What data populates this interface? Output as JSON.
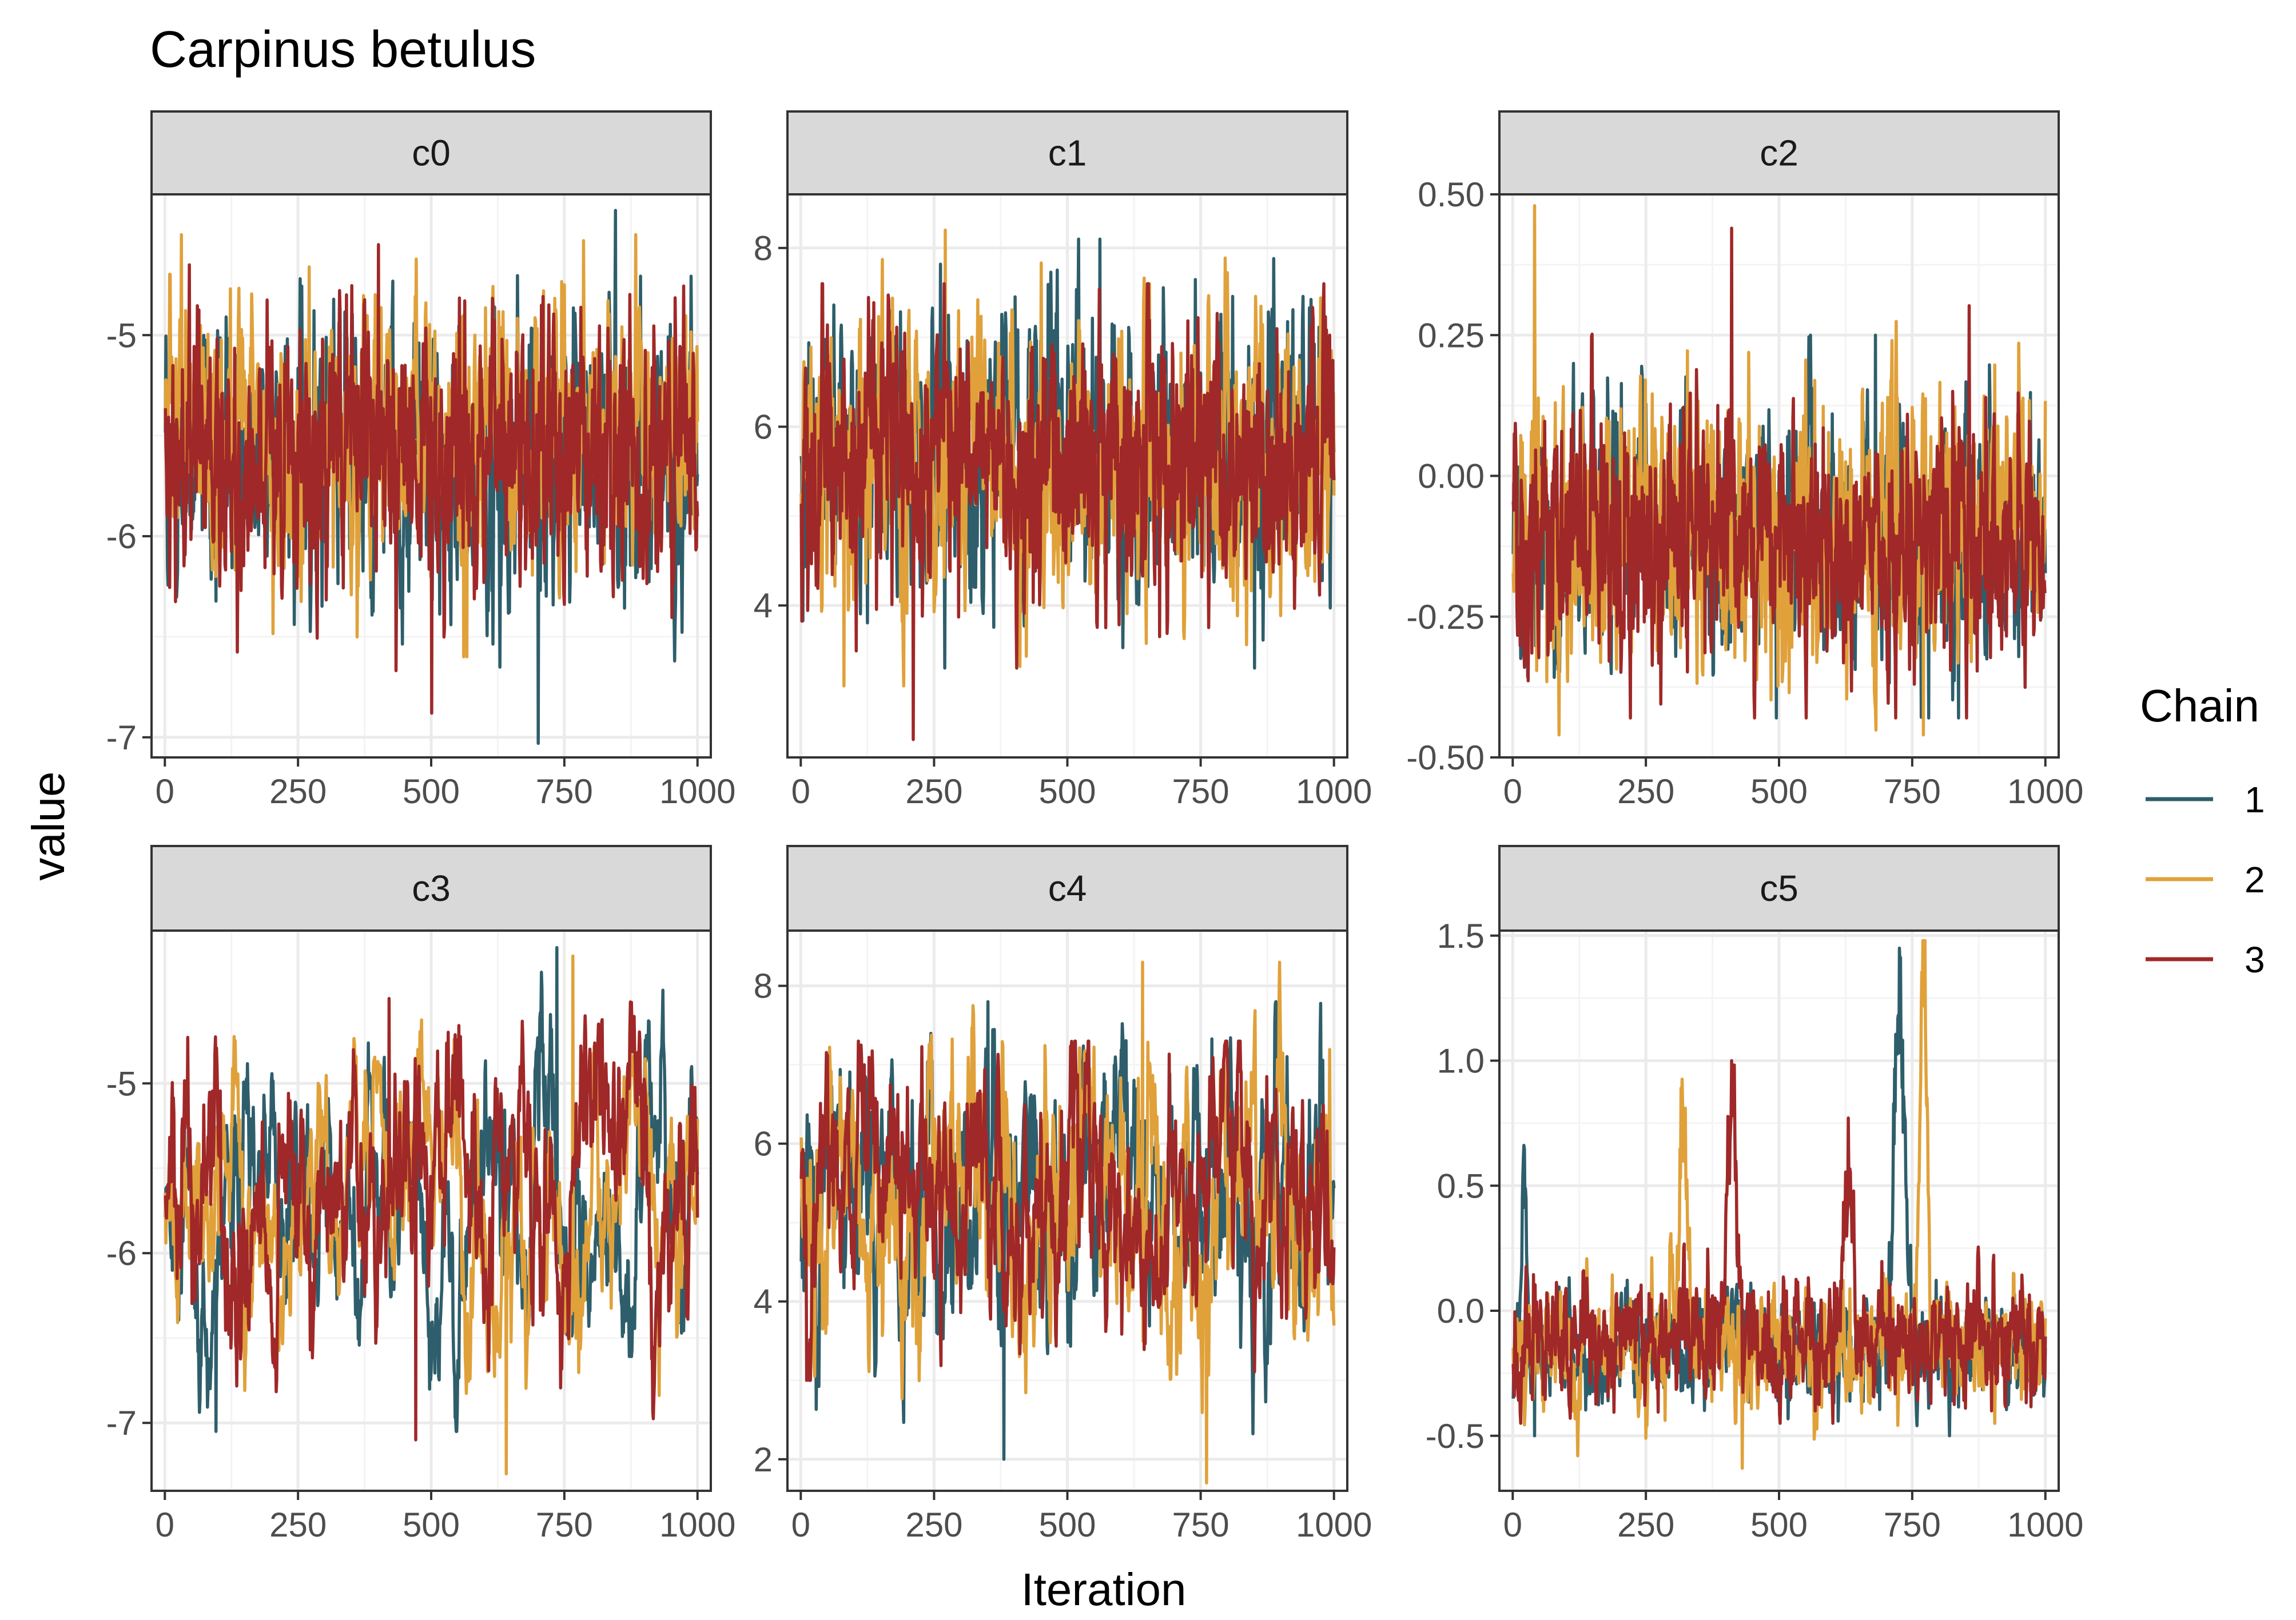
{
  "title": "Carpinus betulus",
  "chart_data": {
    "type": "line",
    "title": "Carpinus betulus",
    "xlabel": "Iteration",
    "ylabel": "value",
    "legend": {
      "title": "Chain",
      "placement": "right",
      "entries": [
        {
          "label": "1",
          "color": "#2e5e6b"
        },
        {
          "label": "2",
          "color": "#e0a13a"
        },
        {
          "label": "3",
          "color": "#a02828"
        }
      ]
    },
    "x_range": [
      1,
      1000
    ],
    "x_ticks": [
      0,
      250,
      500,
      750,
      1000
    ],
    "facets": [
      {
        "name": "c0",
        "ylim": [
          -7.1,
          -4.3
        ],
        "y_ticks": [
          -7,
          -6,
          -5
        ],
        "y_tick_labels": [
          "-7",
          "-6",
          "-5"
        ],
        "seed": 11,
        "chains": [
          {
            "mean": -5.6,
            "sd": 0.33,
            "ar": 0.55,
            "min": -7.03,
            "max": -4.38,
            "ext_min_at": 700,
            "ext_max_at": 845
          },
          {
            "mean": -5.5,
            "sd": 0.32,
            "ar": 0.55,
            "min": -6.6,
            "max": -4.5,
            "ext_min_at": 560,
            "ext_max_at": 30
          },
          {
            "mean": -5.6,
            "sd": 0.33,
            "ar": 0.55,
            "min": -6.88,
            "max": -4.55,
            "ext_min_at": 500,
            "ext_max_at": 400
          }
        ]
      },
      {
        "name": "c1",
        "ylim": [
          2.3,
          8.6
        ],
        "y_ticks": [
          4,
          6,
          8
        ],
        "y_tick_labels": [
          "4",
          "6",
          "8"
        ],
        "seed": 23,
        "chains": [
          {
            "mean": 5.7,
            "sd": 0.75,
            "ar": 0.5,
            "min": 3.3,
            "max": 8.1,
            "ext_min_at": 850,
            "ext_max_at": 560
          },
          {
            "mean": 5.6,
            "sd": 0.75,
            "ar": 0.5,
            "min": 3.1,
            "max": 8.2,
            "ext_min_at": 80,
            "ext_max_at": 270
          },
          {
            "mean": 5.6,
            "sd": 0.75,
            "ar": 0.5,
            "min": 2.5,
            "max": 7.6,
            "ext_min_at": 210,
            "ext_max_at": 980
          }
        ]
      },
      {
        "name": "c2",
        "ylim": [
          -0.5,
          0.5
        ],
        "y_ticks": [
          -0.5,
          -0.25,
          0,
          0.25,
          0.5
        ],
        "y_tick_labels": [
          "-0.50",
          "-0.25",
          "0.00",
          "0.25",
          "0.50"
        ],
        "seed": 37,
        "chains": [
          {
            "mean": -0.12,
            "sd": 0.11,
            "ar": 0.5,
            "min": -0.43,
            "max": 0.25,
            "ext_min_at": 780,
            "ext_max_at": 680
          },
          {
            "mean": -0.1,
            "sd": 0.12,
            "ar": 0.5,
            "min": -0.46,
            "max": 0.48,
            "ext_min_at": 770,
            "ext_max_at": 40
          },
          {
            "mean": -0.12,
            "sd": 0.11,
            "ar": 0.5,
            "min": -0.43,
            "max": 0.44,
            "ext_min_at": 220,
            "ext_max_at": 410
          }
        ]
      },
      {
        "name": "c3",
        "ylim": [
          -7.4,
          -4.1
        ],
        "y_ticks": [
          -7,
          -6,
          -5
        ],
        "y_tick_labels": [
          "-7",
          "-6",
          "-5"
        ],
        "seed": 41,
        "chains": [
          {
            "mean": -5.8,
            "sd": 0.45,
            "ar": 0.92,
            "min": -7.05,
            "max": -4.2,
            "ext_min_at": 95,
            "ext_max_at": 735
          },
          {
            "mean": -5.6,
            "sd": 0.45,
            "ar": 0.92,
            "min": -7.3,
            "max": -4.25,
            "ext_min_at": 640,
            "ext_max_at": 765
          },
          {
            "mean": -5.7,
            "sd": 0.45,
            "ar": 0.9,
            "min": -7.1,
            "max": -4.5,
            "ext_min_at": 470,
            "ext_max_at": 420
          }
        ]
      },
      {
        "name": "c4",
        "ylim": [
          1.6,
          8.7
        ],
        "y_ticks": [
          2,
          4,
          6,
          8
        ],
        "y_tick_labels": [
          "2",
          "4",
          "6",
          "8"
        ],
        "seed": 53,
        "chains": [
          {
            "mean": 5.4,
            "sd": 0.95,
            "ar": 0.85,
            "min": 2.0,
            "max": 7.8,
            "ext_min_at": 380,
            "ext_max_at": 350
          },
          {
            "mean": 5.3,
            "sd": 0.95,
            "ar": 0.85,
            "min": 1.7,
            "max": 8.3,
            "ext_min_at": 760,
            "ext_max_at": 640
          },
          {
            "mean": 5.2,
            "sd": 0.9,
            "ar": 0.85,
            "min": 3.0,
            "max": 7.3,
            "ext_min_at": 10,
            "ext_max_at": 820
          }
        ]
      },
      {
        "name": "c5",
        "ylim": [
          -0.72,
          1.52
        ],
        "y_ticks": [
          -0.5,
          0,
          0.5,
          1,
          1.5
        ],
        "y_tick_labels": [
          "-0.5",
          "0.0",
          "0.5",
          "1.0",
          "1.5"
        ],
        "seed": 67,
        "chains": [
          {
            "mean": -0.15,
            "sd": 0.11,
            "ar": 0.6,
            "min": -0.5,
            "max": 1.45,
            "ext_min_at": 40,
            "ext_max_at": 725,
            "spikes": [
              {
                "at": 725,
                "width": 14,
                "height": 1.55
              },
              {
                "at": 20,
                "width": 6,
                "height": 0.8
              }
            ]
          },
          {
            "mean": -0.13,
            "sd": 0.12,
            "ar": 0.6,
            "min": -0.63,
            "max": 1.48,
            "ext_min_at": 430,
            "ext_max_at": 770,
            "spikes": [
              {
                "at": 770,
                "width": 10,
                "height": 1.6
              },
              {
                "at": 320,
                "width": 10,
                "height": 0.95
              }
            ]
          },
          {
            "mean": -0.12,
            "sd": 0.12,
            "ar": 0.6,
            "min": -0.45,
            "max": 1.0,
            "ext_min_at": 600,
            "ext_max_at": 410,
            "spikes": [
              {
                "at": 410,
                "width": 12,
                "height": 1.05
              },
              {
                "at": 630,
                "width": 12,
                "height": 0.7
              }
            ]
          }
        ]
      }
    ]
  }
}
